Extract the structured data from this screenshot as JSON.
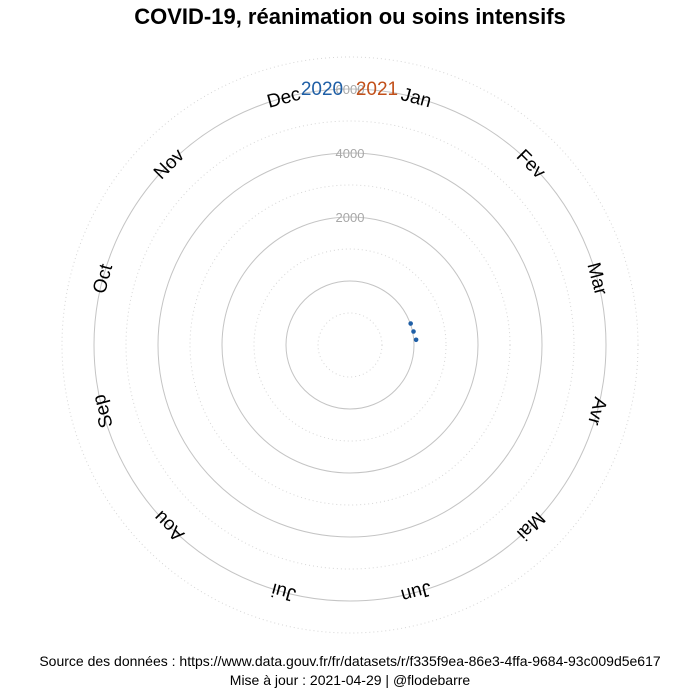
{
  "chart_data": {
    "type": "scatter",
    "title": "COVID-19, réanimation ou soins intensifs",
    "polar": true,
    "legend": {
      "placement": "top",
      "entries": [
        {
          "label": "2020",
          "color": "#1f5fa6"
        },
        {
          "label": "2021",
          "color": "#c2501a"
        }
      ]
    },
    "angular_axis": {
      "labels": [
        "Jan",
        "Fev",
        "Mar",
        "Avr",
        "Mai",
        "Jun",
        "Jui",
        "Aou",
        "Sep",
        "Oct",
        "Nov",
        "Dec"
      ]
    },
    "radial_axis": {
      "range": [
        -2000,
        7000
      ],
      "tick_labels": [
        "2000",
        "4000",
        "6000"
      ]
    },
    "series": [
      {
        "name": "2020",
        "color": "#1f5fa6",
        "points": [
          {
            "month_position": 2.35,
            "value": 11
          },
          {
            "month_position": 2.6,
            "value": 29
          },
          {
            "month_position": 2.85,
            "value": 72
          }
        ]
      }
    ],
    "grid": true
  },
  "footer": {
    "source": "Source des données : https://www.data.gouv.fr/fr/datasets/r/f335f9ea-86e3-4ffa-9684-93c009d5e617",
    "update": "Mise à jour : 2021-04-29 | @flodebarre"
  }
}
